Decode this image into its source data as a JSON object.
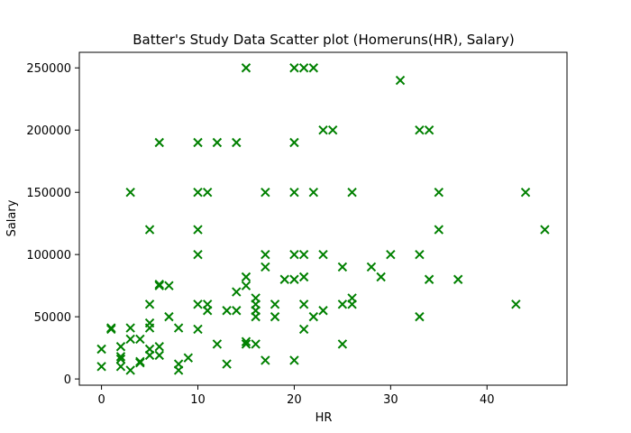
{
  "chart_data": {
    "type": "scatter",
    "title": "Batter's Study Data Scatter plot (Homeruns(HR), Salary)",
    "xlabel": "HR",
    "ylabel": "Salary",
    "xlim": [
      -2.3,
      48.3
    ],
    "ylim": [
      -5000,
      262500
    ],
    "xticks": [
      0,
      10,
      20,
      30,
      40
    ],
    "yticks": [
      0,
      50000,
      100000,
      150000,
      200000,
      250000
    ],
    "grid": false,
    "marker": "x",
    "color": "#008000",
    "points": [
      [
        0,
        10000
      ],
      [
        0,
        24000
      ],
      [
        1,
        40000
      ],
      [
        1,
        41000
      ],
      [
        2,
        10000
      ],
      [
        2,
        16000
      ],
      [
        2,
        18000
      ],
      [
        2,
        26000
      ],
      [
        3,
        7000
      ],
      [
        3,
        32000
      ],
      [
        3,
        41000
      ],
      [
        3,
        150000
      ],
      [
        4,
        13000
      ],
      [
        4,
        14000
      ],
      [
        4,
        32000
      ],
      [
        5,
        19000
      ],
      [
        5,
        24000
      ],
      [
        5,
        41000
      ],
      [
        5,
        45000
      ],
      [
        5,
        60000
      ],
      [
        5,
        120000
      ],
      [
        6,
        19000
      ],
      [
        6,
        26000
      ],
      [
        6,
        75000
      ],
      [
        6,
        76000
      ],
      [
        6,
        190000
      ],
      [
        7,
        50000
      ],
      [
        7,
        75000
      ],
      [
        8,
        7000
      ],
      [
        8,
        12000
      ],
      [
        8,
        41000
      ],
      [
        9,
        17000
      ],
      [
        10,
        40000
      ],
      [
        10,
        60000
      ],
      [
        10,
        100000
      ],
      [
        10,
        120000
      ],
      [
        10,
        150000
      ],
      [
        10,
        190000
      ],
      [
        11,
        55000
      ],
      [
        11,
        60000
      ],
      [
        11,
        150000
      ],
      [
        12,
        28000
      ],
      [
        12,
        190000
      ],
      [
        13,
        12000
      ],
      [
        13,
        55000
      ],
      [
        14,
        55000
      ],
      [
        14,
        70000
      ],
      [
        14,
        190000
      ],
      [
        15,
        28000
      ],
      [
        15,
        30000
      ],
      [
        15,
        75000
      ],
      [
        15,
        82000
      ],
      [
        15,
        250000
      ],
      [
        16,
        28000
      ],
      [
        16,
        50000
      ],
      [
        16,
        55000
      ],
      [
        16,
        60000
      ],
      [
        16,
        65000
      ],
      [
        17,
        15000
      ],
      [
        17,
        90000
      ],
      [
        17,
        100000
      ],
      [
        17,
        150000
      ],
      [
        18,
        50000
      ],
      [
        18,
        60000
      ],
      [
        19,
        80000
      ],
      [
        20,
        15000
      ],
      [
        20,
        80000
      ],
      [
        20,
        100000
      ],
      [
        20,
        150000
      ],
      [
        20,
        190000
      ],
      [
        20,
        250000
      ],
      [
        21,
        40000
      ],
      [
        21,
        60000
      ],
      [
        21,
        82000
      ],
      [
        21,
        100000
      ],
      [
        21,
        250000
      ],
      [
        22,
        50000
      ],
      [
        22,
        150000
      ],
      [
        22,
        250000
      ],
      [
        23,
        55000
      ],
      [
        23,
        100000
      ],
      [
        23,
        200000
      ],
      [
        24,
        200000
      ],
      [
        25,
        28000
      ],
      [
        25,
        60000
      ],
      [
        25,
        90000
      ],
      [
        26,
        60000
      ],
      [
        26,
        65000
      ],
      [
        26,
        150000
      ],
      [
        28,
        90000
      ],
      [
        29,
        82000
      ],
      [
        30,
        100000
      ],
      [
        31,
        240000
      ],
      [
        33,
        50000
      ],
      [
        33,
        100000
      ],
      [
        33,
        200000
      ],
      [
        34,
        80000
      ],
      [
        34,
        200000
      ],
      [
        35,
        120000
      ],
      [
        35,
        150000
      ],
      [
        37,
        80000
      ],
      [
        43,
        60000
      ],
      [
        44,
        150000
      ],
      [
        46,
        120000
      ]
    ]
  }
}
